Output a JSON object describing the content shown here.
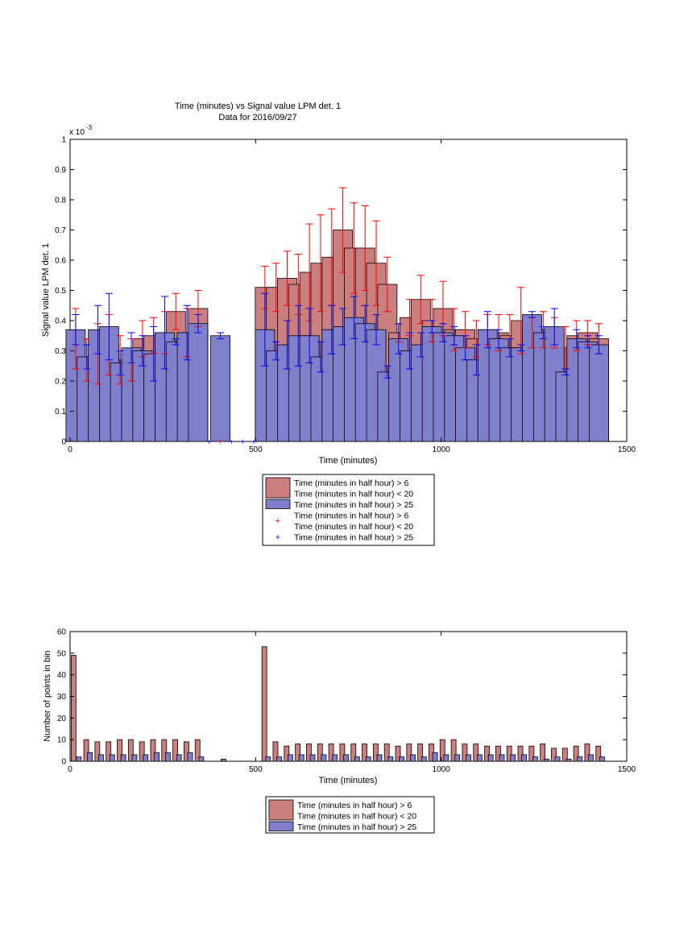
{
  "chart_data": [
    {
      "type": "bar",
      "title": "Time (minutes) vs Signal value LPM det. 1",
      "subtitle": "Data for 2016/09/27",
      "xlabel": "Time (minutes)",
      "ylabel": "Signal value LPM det. 1",
      "y_multiplier": "x 10",
      "y_multiplier_exp": "-3",
      "xlim": [
        0,
        1500
      ],
      "ylim": [
        0,
        1
      ],
      "xticks": [
        "0",
        "500",
        "1000",
        "1500"
      ],
      "yticks": [
        "0",
        "0.1",
        "0.2",
        "0.3",
        "0.4",
        "0.5",
        "0.6",
        "0.7",
        "0.8",
        "0.9",
        "1"
      ],
      "grid": false,
      "legend_position": "below",
      "legend": [
        {
          "kind": "patch",
          "color": "#cc7f7f",
          "lines": [
            "Time (minutes in half hour) > 6",
            "Time (minutes in half hour) < 20"
          ]
        },
        {
          "kind": "patch",
          "color": "#7f7fcc",
          "lines": [
            "Time (minutes in half hour) > 25"
          ]
        },
        {
          "kind": "marker",
          "color": "#ff0000",
          "glyph": "+",
          "lines": [
            "Time (minutes in half hour) > 6",
            "Time (minutes in half hour) < 20"
          ]
        },
        {
          "kind": "marker",
          "color": "#0000ff",
          "glyph": "+",
          "lines": [
            "Time (minutes in half hour) > 25"
          ]
        }
      ],
      "series": [
        {
          "color": "#cc7f7f",
          "err_color": "#ff0000",
          "x": [
            15,
            45,
            75,
            105,
            135,
            165,
            195,
            225,
            255,
            285,
            315,
            345,
            375,
            405,
            435,
            465,
            495,
            525,
            555,
            585,
            615,
            645,
            675,
            705,
            735,
            765,
            795,
            825,
            855,
            885,
            915,
            945,
            975,
            1005,
            1035,
            1065,
            1095,
            1125,
            1155,
            1185,
            1215,
            1245,
            1275,
            1305,
            1335,
            1365,
            1395,
            1425
          ],
          "y": [
            0.34,
            0.27,
            0.29,
            0.32,
            0.27,
            0.27,
            0.34,
            0.35,
            0.36,
            0.43,
            0.36,
            0.44,
            0.0,
            0.0,
            0.0,
            0.0,
            0.0,
            0.51,
            0.51,
            0.54,
            0.52,
            0.56,
            0.59,
            0.61,
            0.7,
            0.64,
            0.64,
            0.59,
            0.52,
            0.36,
            0.41,
            0.47,
            0.4,
            0.44,
            0.37,
            0.37,
            0.34,
            0.37,
            0.36,
            0.35,
            0.4,
            0.36,
            0.37,
            0.36,
            0.31,
            0.35,
            0.36,
            0.34
          ],
          "err": [
            0.1,
            0.07,
            0.1,
            0.1,
            0.08,
            0.07,
            0.06,
            0.06,
            0.07,
            0.06,
            0.08,
            0.06,
            0,
            0,
            0,
            0,
            0,
            0.07,
            0.08,
            0.09,
            0.1,
            0.16,
            0.16,
            0.16,
            0.14,
            0.15,
            0.14,
            0.14,
            0.09,
            0.03,
            0.06,
            0.08,
            0.07,
            0.09,
            0.07,
            0.06,
            0.06,
            0.05,
            0.06,
            0.07,
            0.11,
            0.05,
            0.06,
            0.05,
            0.07,
            0.05,
            0.04,
            0.05
          ]
        },
        {
          "color": "#7f7fcc",
          "err_color": "#0000ff",
          "x": [
            15,
            45,
            75,
            105,
            135,
            165,
            195,
            225,
            255,
            285,
            315,
            345,
            375,
            405,
            435,
            465,
            495,
            525,
            555,
            585,
            615,
            645,
            675,
            705,
            735,
            765,
            795,
            825,
            855,
            885,
            915,
            945,
            975,
            1005,
            1035,
            1065,
            1095,
            1125,
            1155,
            1185,
            1215,
            1245,
            1275,
            1305,
            1335,
            1365,
            1395,
            1425
          ],
          "y": [
            0.37,
            0.28,
            0.37,
            0.38,
            0.26,
            0.31,
            0.3,
            0.29,
            0.36,
            0.33,
            0.36,
            0.39,
            0.0,
            0.35,
            0.0,
            0.0,
            0.0,
            0.37,
            0.3,
            0.32,
            0.35,
            0.35,
            0.28,
            0.37,
            0.38,
            0.41,
            0.39,
            0.37,
            0.23,
            0.34,
            0.3,
            0.32,
            0.38,
            0.36,
            0.35,
            0.31,
            0.27,
            0.37,
            0.34,
            0.31,
            0.31,
            0.42,
            0.36,
            0.38,
            0.23,
            0.34,
            0.33,
            0.32
          ],
          "err": [
            0.05,
            0.04,
            0.08,
            0.11,
            0.04,
            0.05,
            0.05,
            0.09,
            0.12,
            0.01,
            0.09,
            0.03,
            0,
            0.01,
            0,
            0,
            0,
            0.12,
            0.03,
            0.08,
            0.1,
            0.09,
            0.05,
            0.08,
            0.06,
            0.07,
            0.06,
            0.05,
            0.02,
            0.05,
            0.06,
            0.04,
            0.02,
            0.03,
            0.03,
            0.04,
            0.05,
            0.06,
            0.03,
            0.03,
            0.01,
            0.01,
            0.02,
            0.06,
            0.01,
            0.03,
            0.02,
            0.03
          ]
        }
      ]
    },
    {
      "type": "bar",
      "xlabel": "Time (minutes)",
      "ylabel": "Number of points in bin",
      "xlim": [
        0,
        1500
      ],
      "ylim": [
        0,
        60
      ],
      "xticks": [
        "0",
        "500",
        "1000",
        "1500"
      ],
      "yticks": [
        "0",
        "10",
        "20",
        "30",
        "40",
        "50",
        "60"
      ],
      "grid": false,
      "legend_position": "below",
      "legend": [
        {
          "kind": "patch",
          "color": "#cc7f7f",
          "lines": [
            "Time (minutes in half hour) > 6",
            "Time (minutes in half hour) < 20"
          ]
        },
        {
          "kind": "patch",
          "color": "#7f7fcc",
          "lines": [
            "Time (minutes in half hour) > 25"
          ]
        }
      ],
      "series": [
        {
          "color": "#cc7f7f",
          "x": [
            3,
            37,
            67,
            97,
            127,
            157,
            187,
            217,
            247,
            277,
            307,
            337,
            517,
            547,
            577,
            607,
            637,
            667,
            697,
            727,
            757,
            787,
            817,
            847,
            877,
            907,
            937,
            967,
            997,
            1027,
            1057,
            1087,
            1117,
            1147,
            1177,
            1207,
            1237,
            1267,
            1297,
            1327,
            1357,
            1387,
            1417
          ],
          "y": [
            49,
            10,
            9,
            9,
            10,
            10,
            9,
            10,
            10,
            10,
            9,
            10,
            53,
            9,
            7,
            8,
            8,
            8,
            8,
            8,
            8,
            8,
            8,
            8,
            7,
            8,
            8,
            8,
            10,
            10,
            8,
            8,
            7,
            7,
            7,
            7,
            7,
            8,
            6,
            6,
            7,
            8,
            7
          ]
        },
        {
          "color": "#7f7fcc",
          "x": [
            17,
            47,
            77,
            107,
            137,
            167,
            197,
            227,
            257,
            287,
            317,
            347,
            407,
            527,
            557,
            587,
            617,
            647,
            677,
            707,
            737,
            767,
            797,
            827,
            857,
            887,
            917,
            947,
            977,
            1007,
            1037,
            1067,
            1097,
            1127,
            1157,
            1187,
            1217,
            1247,
            1277,
            1307,
            1337,
            1367,
            1397,
            1427
          ],
          "y": [
            2,
            4,
            3,
            3,
            3,
            3,
            3,
            4,
            4,
            3,
            4,
            2,
            1,
            2,
            2,
            3,
            3,
            3,
            3,
            3,
            3,
            2,
            2,
            3,
            2,
            2,
            3,
            2,
            4,
            3,
            3,
            3,
            3,
            3,
            3,
            3,
            3,
            2,
            1,
            2,
            1,
            2,
            3,
            2
          ]
        }
      ]
    }
  ]
}
